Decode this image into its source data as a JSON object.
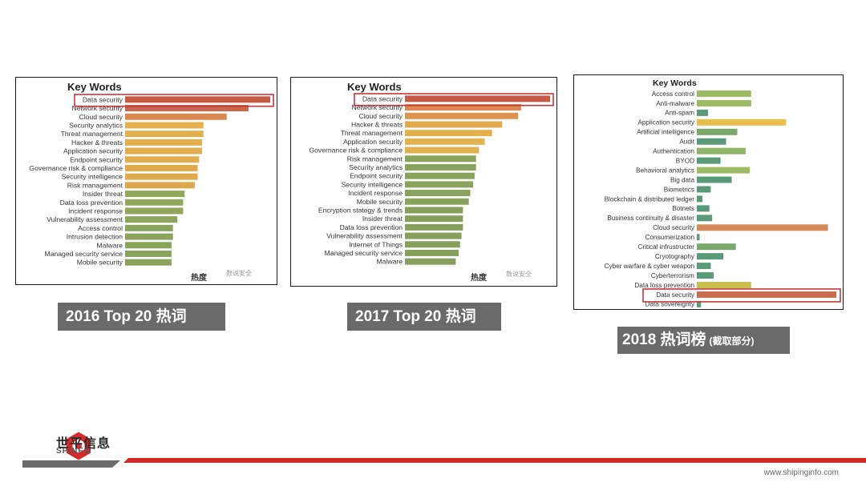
{
  "colors": {
    "accent_red": "#d42a2a",
    "caption_bg": "#6a6a6a",
    "highlight": "#c9353a"
  },
  "chart_data": [
    {
      "id": "p2016",
      "type": "bar",
      "title": "Key Words",
      "footer_label": "热度",
      "watermark": "数说安全",
      "highlight_index": 0,
      "categories": [
        "Data security",
        "Network security",
        "Cloud security",
        "Security analytics",
        "Threat management",
        "Hacker & threats",
        "Application security",
        "Endpoint security",
        "Governance risk & compliance",
        "Security intelligence",
        "Risk management",
        "Insider threat",
        "Data loss prevention",
        "Incident response",
        "Vulnerability assessment",
        "Access control",
        "Intrusion detection",
        "Malware",
        "Managed security service",
        "Mobile security"
      ],
      "values": [
        100,
        85,
        70,
        54,
        54,
        53,
        53,
        51,
        50,
        50,
        48,
        41,
        40,
        40,
        36,
        33,
        33,
        32,
        32,
        32
      ],
      "colors": [
        "#c55a45",
        "#c9674a",
        "#d9894f",
        "#e5b24d",
        "#e4b04d",
        "#e3ae4d",
        "#e3ad4c",
        "#e2ac4c",
        "#e1ab4c",
        "#e0aa4c",
        "#dca84b",
        "#92a85b",
        "#90a75b",
        "#8fa65b",
        "#8da55c",
        "#8ba45c",
        "#8aa35c",
        "#89a35d",
        "#89a35d",
        "#89a35d"
      ]
    },
    {
      "id": "p2017",
      "type": "bar",
      "title": "Key Words",
      "footer_label": "热度",
      "watermark": "数说安全",
      "highlight_index": 0,
      "categories": [
        "Data security",
        "Network security",
        "Cloud security",
        "Hacker & threats",
        "Threat management",
        "Application security",
        "Governance risk & compliance",
        "Risk management",
        "Security analytics",
        "Endpoint security",
        "Security intelligence",
        "Incident response",
        "Mobile security",
        "Encryption stategy & trends",
        "Insider threat",
        "Data loss prevention",
        "Vulnerability assessment",
        "Internet of Things",
        "Managed security service",
        "Malware"
      ],
      "values": [
        100,
        80,
        78,
        67,
        60,
        55,
        51,
        49,
        49,
        48,
        47,
        45,
        44,
        40,
        40,
        40,
        39,
        38,
        37,
        35
      ],
      "colors": [
        "#c55a45",
        "#d9894f",
        "#dc944f",
        "#e1a94d",
        "#e3b04d",
        "#e3b24d",
        "#e2b04d",
        "#89a35c",
        "#89a35c",
        "#89a35c",
        "#89a35c",
        "#89a35c",
        "#89a35c",
        "#86a05c",
        "#86a05c",
        "#86a05c",
        "#86a05c",
        "#86a05c",
        "#86a05c",
        "#86a05c"
      ]
    },
    {
      "id": "p2018",
      "type": "bar",
      "title": "Key Words",
      "highlight_index": 21,
      "categories": [
        "Access control",
        "Anti-malware",
        "Anti-spam",
        "Application security",
        "Artificial intelligence",
        "Audit",
        "Authentication",
        "BYOD",
        "Behavioral analytics",
        "Big data",
        "Biometrics",
        "Blockchain & distributed ledger",
        "Botnets",
        "Business continuity & disaster",
        "Cloud security",
        "Consumerization",
        "Critical infrustructer",
        "Cryotography",
        "Cyber warfare & cyber weapon",
        "Cyberterrorism",
        "Data loss prevention",
        "Data security",
        "Data sovereignty"
      ],
      "values": [
        39,
        39,
        8,
        64,
        29,
        21,
        35,
        17,
        38,
        25,
        10,
        4,
        9,
        11,
        94,
        2,
        28,
        19,
        10,
        12,
        39,
        100,
        3
      ],
      "colors": [
        "#9dbb62",
        "#9dbb62",
        "#5a9a78",
        "#e8c049",
        "#7aa86a",
        "#5a9a78",
        "#8fb466",
        "#5a9a78",
        "#9dbb62",
        "#5a9a78",
        "#5a9a78",
        "#5a9a78",
        "#5a9a78",
        "#5a9a78",
        "#d48a5b",
        "#5a9a78",
        "#7aa86a",
        "#5a9a78",
        "#5a9a78",
        "#5a9a78",
        "#c9bf4f",
        "#c96c50",
        "#5a9a78"
      ]
    }
  ],
  "captions": {
    "c2016": "2016 Top 20 热词",
    "c2017": "2017 Top 20 热词",
    "c2018_main": "2018 热词榜",
    "c2018_note": "(截取部分)"
  },
  "logo": {
    "cn": "世平信息",
    "en": "SPINFO"
  },
  "website": "www.shipinginfo.com"
}
